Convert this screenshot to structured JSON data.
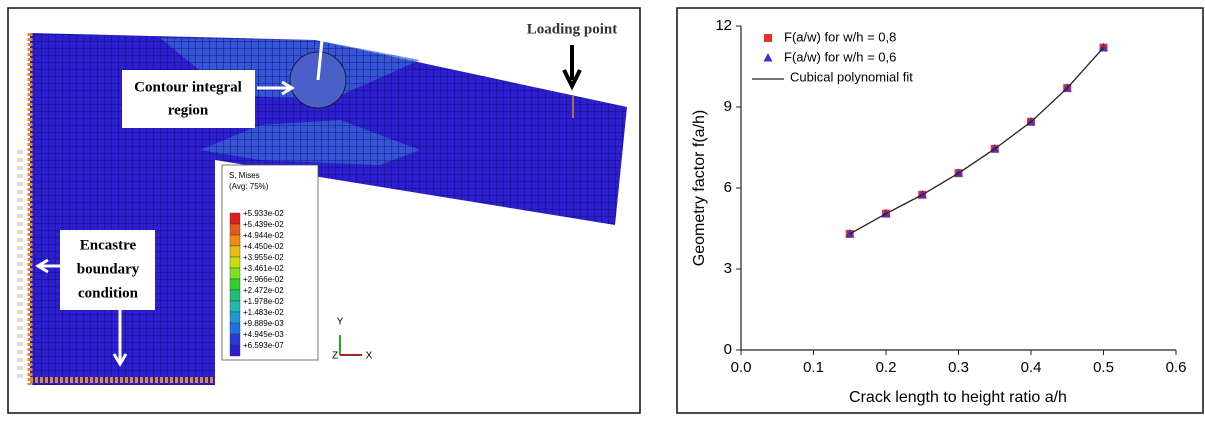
{
  "figure": {
    "loading_label": "Loading point",
    "contour_label": [
      "Contour integral",
      "region"
    ],
    "encastre_label": [
      "Encastre",
      "boundary",
      "condition"
    ],
    "legend_title": [
      "S, Mises",
      "(Avg: 75%)"
    ],
    "legend_values": [
      "+5.933e-02",
      "+5.439e-02",
      "+4.944e-02",
      "+4.450e-02",
      "+3.955e-02",
      "+3.461e-02",
      "+2.966e-02",
      "+2.472e-02",
      "+1.978e-02",
      "+1.483e-02",
      "+9.889e-03",
      "+4.945e-03",
      "+6.593e-07"
    ],
    "axes": [
      "Y",
      "Z",
      "X"
    ]
  },
  "chart_data": {
    "type": "scatter",
    "xlabel": "Crack length to height ratio a/h",
    "ylabel": "Geometry factor  f(a/h)",
    "x": [
      0.15,
      0.2,
      0.25,
      0.3,
      0.35,
      0.4,
      0.45,
      0.5
    ],
    "series": [
      {
        "name": "F(a/w) for w/h = 0,8",
        "color": "#e8322a",
        "marker": "square",
        "values": [
          4.3,
          5.05,
          5.75,
          6.55,
          7.45,
          8.45,
          9.7,
          11.2
        ]
      },
      {
        "name": "F(a/w) for w/h = 0,6",
        "color": "#3a2fd8",
        "marker": "triangle",
        "values": [
          4.3,
          5.05,
          5.75,
          6.55,
          7.45,
          8.45,
          9.7,
          11.2
        ]
      },
      {
        "name": "Cubical polynomial fit",
        "color": "#222222",
        "marker": "line",
        "values": [
          4.3,
          5.05,
          5.75,
          6.55,
          7.45,
          8.45,
          9.7,
          11.2
        ]
      }
    ],
    "xlim": [
      0,
      0.6
    ],
    "xticks": [
      {
        "value": 0,
        "label": "0.0"
      },
      0.1,
      0.2,
      0.3,
      0.4,
      0.5,
      0.6
    ],
    "ylim": [
      0,
      12
    ],
    "yticks": [
      0,
      3,
      6,
      9,
      12
    ],
    "legend": "upper-left"
  }
}
